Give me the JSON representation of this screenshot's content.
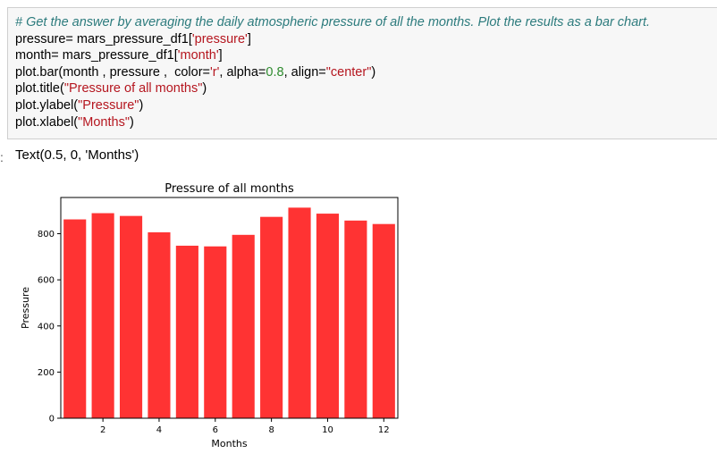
{
  "cell": {
    "comment": "# Get the answer by averaging the daily atmospheric pressure of all the months. Plot the results as a bar chart.",
    "line1": {
      "a": "pressure= mars_pressure_df1[",
      "s": "'pressure'",
      "b": "]"
    },
    "line2": {
      "a": "month= mars_pressure_df1[",
      "s": "'month'",
      "b": "]"
    },
    "line3": {
      "a": "plot.bar(month , pressure ,  color=",
      "s1": "'r'",
      "b": ", alpha=",
      "n": "0.8",
      "c": ", align=",
      "s2": "\"center\"",
      "d": ")"
    },
    "line4": {
      "a": "plot.title(",
      "s": "\"Pressure of all months\"",
      "b": ")"
    },
    "line5": {
      "a": "plot.ylabel(",
      "s": "\"Pressure\"",
      "b": ")"
    },
    "line6": {
      "a": "plot.xlabel(",
      "s": "\"Months\"",
      "b": ")"
    }
  },
  "output": {
    "prompt": ":",
    "text": "Text(0.5, 0, 'Months')"
  },
  "chart_data": {
    "type": "bar",
    "title": "Pressure of all months",
    "xlabel": "Months",
    "ylabel": "Pressure",
    "x": [
      1,
      2,
      3,
      4,
      5,
      6,
      7,
      8,
      9,
      10,
      11,
      12
    ],
    "values": [
      862,
      889,
      877,
      806,
      748,
      745,
      795,
      873,
      913,
      887,
      857,
      842
    ],
    "xticks": [
      "2",
      "4",
      "6",
      "8",
      "10",
      "12"
    ],
    "yticks": [
      "0",
      "200",
      "400",
      "600",
      "800"
    ],
    "xlim": [
      0.5,
      12.5
    ],
    "ylim": [
      0,
      957
    ],
    "bar_color": "#ff0000",
    "alpha": 0.8,
    "grid": false
  }
}
